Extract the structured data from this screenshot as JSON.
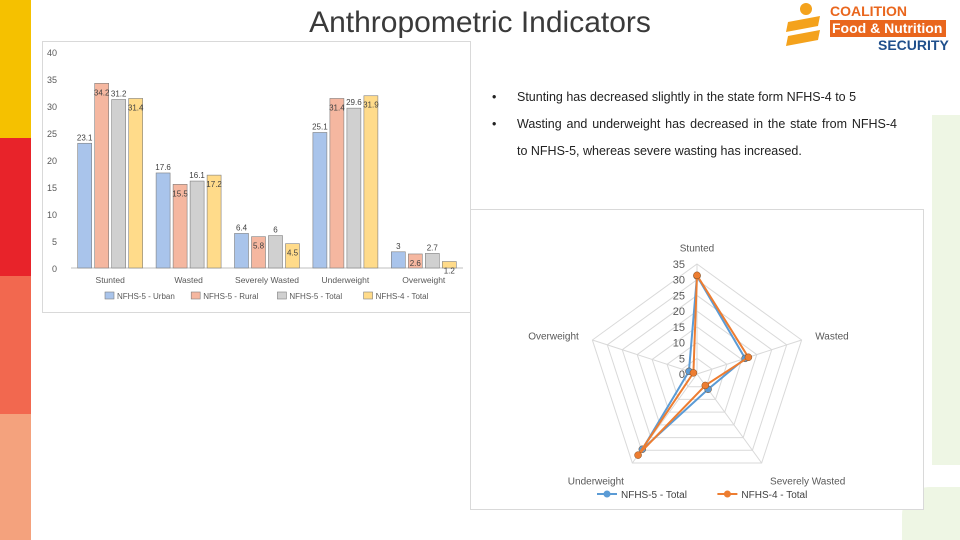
{
  "slide": {
    "title": "Anthropometric Indicators",
    "accent_colors": [
      "#f5c100",
      "#e8232a",
      "#f2684f",
      "#f4a27d"
    ]
  },
  "logo": {
    "line1": "COALITION",
    "line2": "Food & Nutrition",
    "line3": "SECURITY",
    "colors": {
      "text": "#e9661d",
      "band_bg": "#e9661d",
      "band_text": "#ffffff",
      "security": "#1f4f8c",
      "mark": "#f4a21c"
    }
  },
  "bullets": [
    "Stunting has decreased slightly in the state form NFHS-4 to 5",
    "Wasting and underweight has decreased in the state from NFHS-4 to NFHS-5, whereas severe wasting has increased."
  ],
  "chart_data": [
    {
      "type": "bar",
      "title": "",
      "categories": [
        "Stunted",
        "Wasted",
        "Severely Wasted",
        "Underweight",
        "Overweight"
      ],
      "series": [
        {
          "name": "NFHS-5 - Urban",
          "color": "#a9c4eb",
          "values": [
            23.1,
            17.6,
            6.4,
            25.1,
            3
          ]
        },
        {
          "name": "NFHS-5 - Rural",
          "color": "#f5b7a0",
          "values": [
            34.2,
            15.5,
            5.8,
            31.4,
            2.6
          ]
        },
        {
          "name": "NFHS-5 - Total",
          "color": "#d0d0d0",
          "values": [
            31.2,
            16.1,
            6,
            29.6,
            2.7
          ]
        },
        {
          "name": "NFHS-4 - Total",
          "color": "#ffdb8a",
          "values": [
            31.4,
            17.2,
            4.5,
            31.9,
            1.2
          ]
        }
      ],
      "ylim": [
        0,
        40
      ],
      "yticks": [
        0,
        5,
        10,
        15,
        20,
        25,
        30,
        35,
        40
      ],
      "legend_position": "bottom",
      "grid": false
    },
    {
      "type": "radar",
      "title": "",
      "categories": [
        "Stunted",
        "Wasted",
        "Severely Wasted",
        "Underweight",
        "Overweight"
      ],
      "series": [
        {
          "name": "NFHS-5 - Total",
          "color": "#5b9bd5",
          "values": [
            31.2,
            16.1,
            6,
            29.6,
            2.7
          ]
        },
        {
          "name": "NFHS-4 - Total",
          "color": "#ed7d31",
          "values": [
            31.4,
            17.2,
            4.5,
            31.9,
            1.2
          ]
        }
      ],
      "rlim": [
        0,
        35
      ],
      "rticks": [
        0,
        5,
        10,
        15,
        20,
        25,
        30,
        35
      ],
      "legend_position": "bottom",
      "grid": true
    }
  ]
}
